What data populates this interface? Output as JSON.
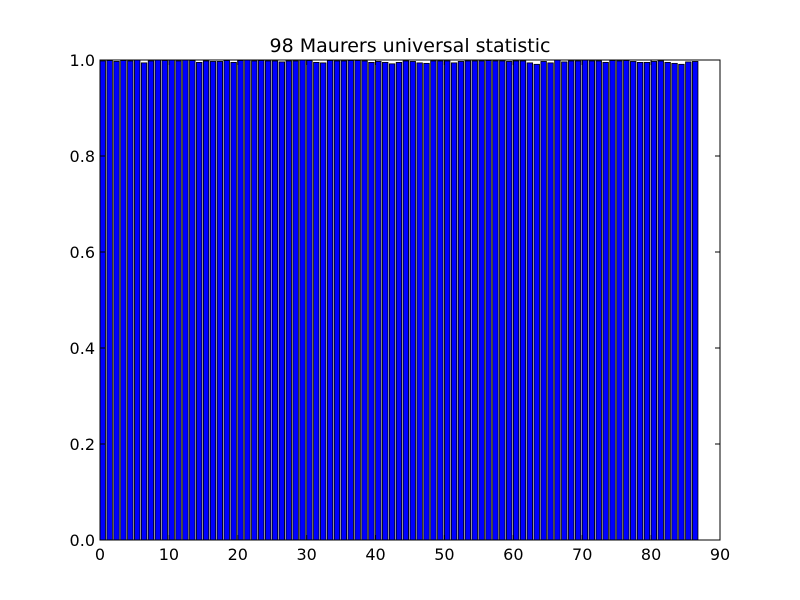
{
  "chart_data": {
    "type": "bar",
    "title": "98 Maurers universal statistic",
    "xlabel": "",
    "ylabel": "",
    "xlim": [
      0,
      90
    ],
    "ylim": [
      0,
      1.0
    ],
    "grid": false,
    "bar_color": "#0000ff",
    "bar_edge_color": "#000000",
    "bar_width": 0.8,
    "x_ticks": [
      "0",
      "10",
      "20",
      "30",
      "40",
      "50",
      "60",
      "70",
      "80",
      "90"
    ],
    "y_ticks": [
      "0.0",
      "0.2",
      "0.4",
      "0.6",
      "0.8",
      "1.0"
    ],
    "x": [
      0,
      1,
      2,
      3,
      4,
      5,
      6,
      7,
      8,
      9,
      10,
      11,
      12,
      13,
      14,
      15,
      16,
      17,
      18,
      19,
      20,
      21,
      22,
      23,
      24,
      25,
      26,
      27,
      28,
      29,
      30,
      31,
      32,
      33,
      34,
      35,
      36,
      37,
      38,
      39,
      40,
      41,
      42,
      43,
      44,
      45,
      46,
      47,
      48,
      49,
      50,
      51,
      52,
      53,
      54,
      55,
      56,
      57,
      58,
      59,
      60,
      61,
      62,
      63,
      64,
      65,
      66,
      67,
      68,
      69,
      70,
      71,
      72,
      73,
      74,
      75,
      76,
      77,
      78,
      79,
      80,
      81,
      82,
      83,
      84,
      85,
      86
    ],
    "values": [
      0.998,
      0.999,
      0.997,
      0.999,
      0.998,
      1.0,
      0.994,
      0.998,
      1.0,
      0.999,
      1.0,
      0.998,
      1.0,
      0.999,
      0.995,
      0.998,
      0.997,
      0.997,
      0.999,
      0.995,
      0.999,
      1.0,
      0.998,
      0.999,
      0.998,
      0.998,
      0.996,
      0.998,
      0.998,
      1.0,
      0.999,
      0.995,
      0.994,
      0.999,
      0.998,
      0.998,
      0.999,
      0.999,
      0.998,
      0.995,
      0.997,
      0.995,
      0.992,
      0.995,
      0.998,
      0.997,
      0.994,
      0.993,
      0.998,
      0.998,
      0.998,
      0.994,
      0.997,
      0.998,
      0.998,
      0.998,
      0.999,
      0.998,
      0.998,
      0.997,
      0.998,
      0.998,
      0.994,
      0.991,
      0.997,
      0.994,
      1.0,
      0.996,
      0.998,
      0.998,
      1.0,
      0.998,
      0.998,
      0.995,
      0.999,
      0.998,
      0.999,
      0.997,
      0.995,
      0.995,
      0.997,
      0.998,
      0.995,
      0.993,
      0.991,
      0.996,
      0.997
    ]
  }
}
